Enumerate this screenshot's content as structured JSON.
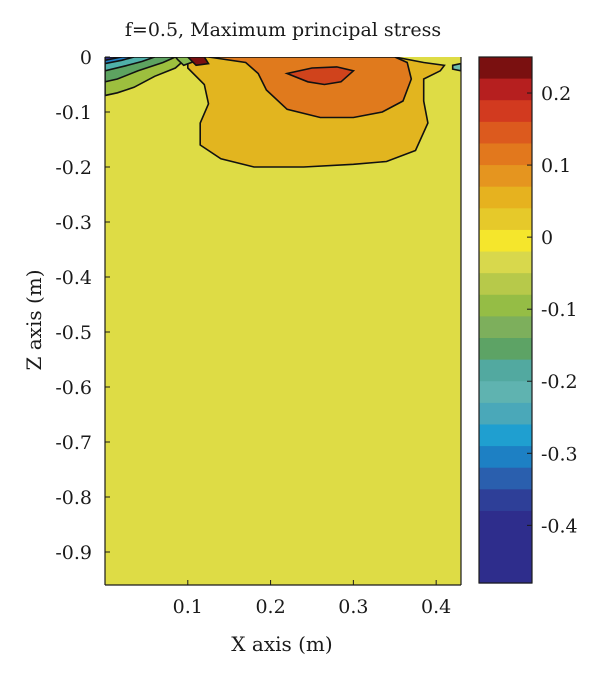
{
  "chart_data": {
    "type": "heatmap",
    "title": "f=0.5, Maximum principal stress",
    "xlabel": "X axis (m)",
    "ylabel": "Z axis (m)",
    "xlim": [
      0,
      0.43
    ],
    "ylim": [
      -0.96,
      0
    ],
    "x_ticks": [
      {
        "value": 0.1,
        "label": "0.1"
      },
      {
        "value": 0.2,
        "label": "0.2"
      },
      {
        "value": 0.3,
        "label": "0.3"
      },
      {
        "value": 0.4,
        "label": "0.4"
      }
    ],
    "y_ticks": [
      {
        "value": 0,
        "label": "0"
      },
      {
        "value": -0.1,
        "label": "-0.1"
      },
      {
        "value": -0.2,
        "label": "-0.2"
      },
      {
        "value": -0.3,
        "label": "-0.3"
      },
      {
        "value": -0.4,
        "label": "-0.4"
      },
      {
        "value": -0.5,
        "label": "-0.5"
      },
      {
        "value": -0.6,
        "label": "-0.6"
      },
      {
        "value": -0.7,
        "label": "-0.7"
      },
      {
        "value": -0.8,
        "label": "-0.8"
      },
      {
        "value": -0.9,
        "label": "-0.9"
      }
    ],
    "background_value": -0.02,
    "regions": [
      {
        "value": 0.06,
        "color": "#e2b51f",
        "outline": "#111111",
        "points": [
          [
            0.1,
            0
          ],
          [
            0.18,
            0
          ],
          [
            0.35,
            0
          ],
          [
            0.385,
            -0.01
          ],
          [
            0.41,
            -0.015
          ],
          [
            0.405,
            -0.025
          ],
          [
            0.385,
            -0.04
          ],
          [
            0.385,
            -0.08
          ],
          [
            0.39,
            -0.12
          ],
          [
            0.375,
            -0.17
          ],
          [
            0.34,
            -0.19
          ],
          [
            0.3,
            -0.195
          ],
          [
            0.24,
            -0.2
          ],
          [
            0.18,
            -0.2
          ],
          [
            0.14,
            -0.185
          ],
          [
            0.115,
            -0.16
          ],
          [
            0.115,
            -0.12
          ],
          [
            0.125,
            -0.085
          ],
          [
            0.12,
            -0.05
          ],
          [
            0.1,
            -0.02
          ]
        ]
      },
      {
        "value": 0.12,
        "color": "#e07a1d",
        "outline": "#111111",
        "points": [
          [
            0.125,
            0
          ],
          [
            0.17,
            -0.01
          ],
          [
            0.185,
            -0.03
          ],
          [
            0.195,
            -0.06
          ],
          [
            0.22,
            -0.095
          ],
          [
            0.26,
            -0.11
          ],
          [
            0.3,
            -0.11
          ],
          [
            0.335,
            -0.1
          ],
          [
            0.36,
            -0.08
          ],
          [
            0.37,
            -0.04
          ],
          [
            0.365,
            -0.01
          ],
          [
            0.35,
            0
          ]
        ]
      },
      {
        "value": 0.18,
        "color": "#d0431c",
        "outline": "#111111",
        "points": [
          [
            0.22,
            -0.03
          ],
          [
            0.245,
            -0.045
          ],
          [
            0.265,
            -0.05
          ],
          [
            0.285,
            -0.045
          ],
          [
            0.3,
            -0.025
          ],
          [
            0.28,
            -0.018
          ],
          [
            0.25,
            -0.02
          ]
        ]
      },
      {
        "value": -0.08,
        "color": "#9dbf3e",
        "outline": "#111111",
        "points": [
          [
            0,
            0
          ],
          [
            0.1,
            0
          ],
          [
            0.085,
            -0.02
          ],
          [
            0.06,
            -0.035
          ],
          [
            0.035,
            -0.055
          ],
          [
            0.015,
            -0.065
          ],
          [
            0,
            -0.07
          ]
        ]
      },
      {
        "value": -0.13,
        "color": "#5da360",
        "outline": "#111111",
        "points": [
          [
            0,
            0
          ],
          [
            0.085,
            0
          ],
          [
            0.07,
            -0.01
          ],
          [
            0.04,
            -0.025
          ],
          [
            0.015,
            -0.04
          ],
          [
            0,
            -0.045
          ]
        ]
      },
      {
        "value": -0.2,
        "color": "#4fb0a9",
        "outline": "#111111",
        "points": [
          [
            0,
            0
          ],
          [
            0.06,
            0
          ],
          [
            0.045,
            -0.008
          ],
          [
            0.025,
            -0.016
          ],
          [
            0,
            -0.025
          ]
        ]
      },
      {
        "value": -0.3,
        "color": "#1f7fc4",
        "outline": "#111111",
        "points": [
          [
            0,
            0
          ],
          [
            0.035,
            0
          ],
          [
            0.02,
            -0.006
          ],
          [
            0,
            -0.012
          ]
        ]
      },
      {
        "value": -0.4,
        "color": "#2e2d8c",
        "outline": "#111111",
        "points": [
          [
            0,
            0
          ],
          [
            0.02,
            0
          ],
          [
            0,
            -0.006
          ]
        ]
      },
      {
        "value": -0.1,
        "color": "#86b94e",
        "outline": "#111111",
        "points": [
          [
            0.085,
            0
          ],
          [
            0.1,
            0
          ],
          [
            0.108,
            -0.008
          ],
          [
            0.095,
            -0.015
          ],
          [
            0.088,
            -0.005
          ]
        ]
      },
      {
        "value": 0.22,
        "color": "#7a1010",
        "outline": "#111111",
        "points": [
          [
            0.1,
            0
          ],
          [
            0.12,
            0
          ],
          [
            0.125,
            -0.012
          ],
          [
            0.11,
            -0.015
          ]
        ]
      },
      {
        "value": -0.08,
        "color": "#6fbfae",
        "outline": "#111111",
        "points": [
          [
            0.42,
            -0.015
          ],
          [
            0.43,
            -0.012
          ],
          [
            0.43,
            -0.025
          ],
          [
            0.42,
            -0.022
          ]
        ]
      }
    ],
    "colorbar": {
      "range": [
        -0.48,
        0.25
      ],
      "ticks": [
        {
          "value": 0.2,
          "label": "0.2"
        },
        {
          "value": 0.1,
          "label": "0.1"
        },
        {
          "value": 0,
          "label": "0"
        },
        {
          "value": -0.1,
          "label": "-0.1"
        },
        {
          "value": -0.2,
          "label": "-0.2"
        },
        {
          "value": -0.3,
          "label": "-0.3"
        },
        {
          "value": -0.4,
          "label": "-0.4"
        }
      ],
      "levels": [
        {
          "from": 0.22,
          "to": 0.25,
          "color": "#7a1010"
        },
        {
          "from": 0.19,
          "to": 0.22,
          "color": "#b61f1f"
        },
        {
          "from": 0.16,
          "to": 0.19,
          "color": "#d23a1f"
        },
        {
          "from": 0.13,
          "to": 0.16,
          "color": "#dc5a1e"
        },
        {
          "from": 0.1,
          "to": 0.13,
          "color": "#e2781d"
        },
        {
          "from": 0.07,
          "to": 0.1,
          "color": "#e5951f"
        },
        {
          "from": 0.04,
          "to": 0.07,
          "color": "#e6b21f"
        },
        {
          "from": 0.01,
          "to": 0.04,
          "color": "#e6c92a"
        },
        {
          "from": -0.02,
          "to": 0.01,
          "color": "#f5e62c"
        },
        {
          "from": -0.05,
          "to": -0.02,
          "color": "#d8d84c"
        },
        {
          "from": -0.08,
          "to": -0.05,
          "color": "#b7c94a"
        },
        {
          "from": -0.11,
          "to": -0.08,
          "color": "#95bd45"
        },
        {
          "from": -0.14,
          "to": -0.11,
          "color": "#7daf5c"
        },
        {
          "from": -0.17,
          "to": -0.14,
          "color": "#5da365"
        },
        {
          "from": -0.2,
          "to": -0.17,
          "color": "#52a9a0"
        },
        {
          "from": -0.23,
          "to": -0.2,
          "color": "#5fb3b0"
        },
        {
          "from": -0.26,
          "to": -0.23,
          "color": "#4aa8b9"
        },
        {
          "from": -0.29,
          "to": -0.26,
          "color": "#1f9fd0"
        },
        {
          "from": -0.32,
          "to": -0.29,
          "color": "#1d80c4"
        },
        {
          "from": -0.35,
          "to": -0.32,
          "color": "#2a5fae"
        },
        {
          "from": -0.38,
          "to": -0.35,
          "color": "#2e3f98"
        },
        {
          "from": -0.48,
          "to": -0.38,
          "color": "#2e2d8c"
        }
      ]
    },
    "colors": {
      "background_fill": "#dedc45",
      "axis": "#1a1a1a"
    }
  }
}
